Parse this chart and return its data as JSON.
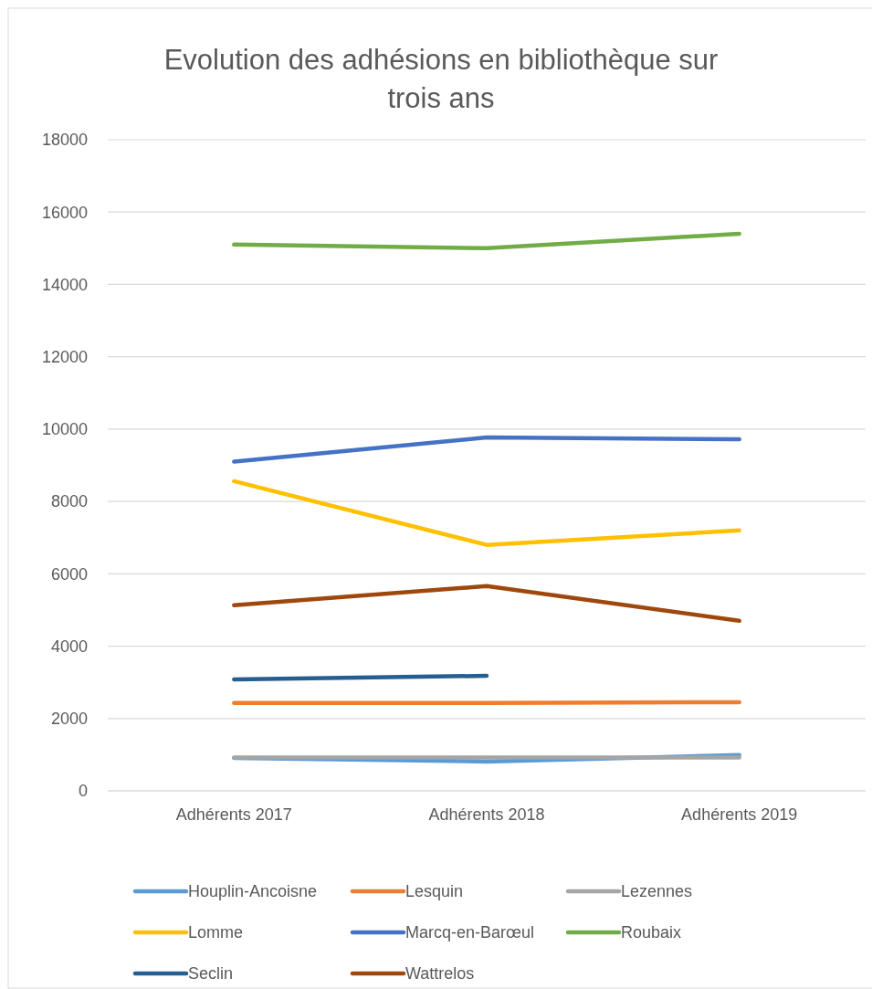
{
  "chart_data": {
    "type": "line",
    "title": "Evolution des adhésions en bibliothèque sur trois ans",
    "categories": [
      "Adhérents 2017",
      "Adhérents 2018",
      "Adhérents 2019"
    ],
    "series": [
      {
        "name": "Houplin-Ancoisne",
        "color": "#5b9bd5",
        "values": [
          910,
          810,
          990
        ]
      },
      {
        "name": "Lesquin",
        "color": "#ed7d31",
        "values": [
          2430,
          2430,
          2450
        ]
      },
      {
        "name": "Lezennes",
        "color": "#a5a5a5",
        "values": [
          920,
          920,
          920
        ]
      },
      {
        "name": "Lomme",
        "color": "#ffc000",
        "values": [
          8560,
          6800,
          7200
        ]
      },
      {
        "name": "Marcq-en-Barœul",
        "color": "#4472c4",
        "values": [
          9100,
          9770,
          9720
        ]
      },
      {
        "name": "Roubaix",
        "color": "#70ad47",
        "values": [
          15100,
          15000,
          15400
        ]
      },
      {
        "name": "Seclin",
        "color": "#255e91",
        "values": [
          3080,
          3180,
          null
        ]
      },
      {
        "name": "Wattrelos",
        "color": "#9e480e",
        "values": [
          5130,
          5660,
          4700
        ]
      }
    ],
    "ylim": [
      0,
      18000
    ],
    "yticks": [
      0,
      2000,
      4000,
      6000,
      8000,
      10000,
      12000,
      14000,
      16000,
      18000
    ],
    "grid": "y",
    "legend": "bottom",
    "marker": "none",
    "line_style": "solid"
  }
}
